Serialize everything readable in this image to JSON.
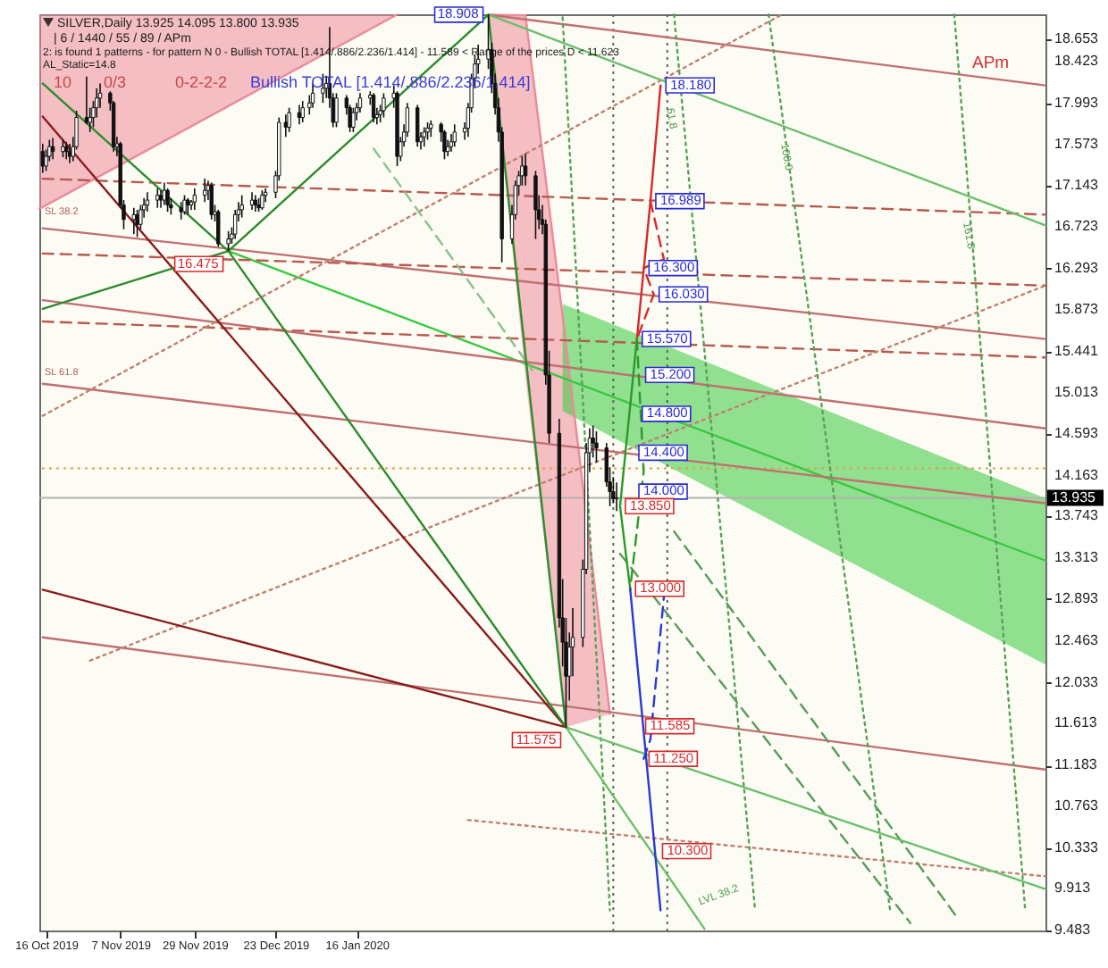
{
  "chart_data": {
    "type": "candlestick",
    "x": [
      "2019-10-15",
      "2019-10-16",
      "2019-10-17",
      "2019-10-18",
      "2019-10-21",
      "2019-10-22",
      "2019-10-23",
      "2019-10-24",
      "2019-10-25",
      "2019-10-28",
      "2019-10-29",
      "2019-10-30",
      "2019-10-31",
      "2019-11-01",
      "2019-11-04",
      "2019-11-05",
      "2019-11-06",
      "2019-11-07",
      "2019-11-08",
      "2019-11-11",
      "2019-11-12",
      "2019-11-13",
      "2019-11-14",
      "2019-11-15",
      "2019-11-18",
      "2019-11-19",
      "2019-11-20",
      "2019-11-21",
      "2019-11-22",
      "2019-11-25",
      "2019-11-26",
      "2019-11-27",
      "2019-11-28",
      "2019-11-29",
      "2019-12-02",
      "2019-12-03",
      "2019-12-04",
      "2019-12-05",
      "2019-12-06",
      "2019-12-09",
      "2019-12-10",
      "2019-12-11",
      "2019-12-12",
      "2019-12-13",
      "2019-12-16",
      "2019-12-17",
      "2019-12-18",
      "2019-12-19",
      "2019-12-20",
      "2019-12-23",
      "2019-12-24",
      "2019-12-26",
      "2019-12-27",
      "2019-12-30",
      "2019-12-31",
      "2020-01-02",
      "2020-01-03",
      "2020-01-06",
      "2020-01-07",
      "2020-01-08",
      "2020-01-09",
      "2020-01-10",
      "2020-01-13",
      "2020-01-14",
      "2020-01-15",
      "2020-01-16",
      "2020-01-17",
      "2020-01-20",
      "2020-01-21",
      "2020-01-22",
      "2020-01-23",
      "2020-01-24",
      "2020-01-27",
      "2020-01-28",
      "2020-01-29",
      "2020-01-30",
      "2020-01-31",
      "2020-02-03",
      "2020-02-04",
      "2020-02-05",
      "2020-02-06",
      "2020-02-07",
      "2020-02-10",
      "2020-02-11",
      "2020-02-12",
      "2020-02-13",
      "2020-02-14",
      "2020-02-17",
      "2020-02-18",
      "2020-02-19",
      "2020-02-20",
      "2020-02-21",
      "2020-02-24",
      "2020-02-25",
      "2020-02-26",
      "2020-02-27",
      "2020-02-28",
      "2020-03-02",
      "2020-03-03",
      "2020-03-04",
      "2020-03-05",
      "2020-03-06",
      "2020-03-09",
      "2020-03-10",
      "2020-03-11",
      "2020-03-12",
      "2020-03-13",
      "2020-03-16",
      "2020-03-17",
      "2020-03-18",
      "2020-03-19",
      "2020-03-20",
      "2020-03-23",
      "2020-03-24",
      "2020-03-25",
      "2020-03-26",
      "2020-03-27",
      "2020-03-30",
      "2020-03-31",
      "2020-04-01",
      "2020-04-02"
    ],
    "ohlc": [
      [
        17.5,
        17.58,
        17.28,
        17.35
      ],
      [
        17.35,
        17.52,
        17.3,
        17.45
      ],
      [
        17.45,
        17.62,
        17.4,
        17.55
      ],
      [
        17.55,
        17.64,
        17.42,
        17.5
      ],
      [
        17.5,
        17.62,
        17.44,
        17.55
      ],
      [
        17.55,
        17.6,
        17.42,
        17.5
      ],
      [
        17.5,
        17.58,
        17.38,
        17.45
      ],
      [
        17.45,
        17.65,
        17.4,
        17.55
      ],
      [
        17.55,
        17.92,
        17.52,
        17.85
      ],
      [
        17.85,
        18.27,
        17.78,
        17.8
      ],
      [
        17.8,
        17.95,
        17.7,
        17.85
      ],
      [
        17.85,
        18.02,
        17.75,
        17.95
      ],
      [
        17.95,
        18.15,
        17.85,
        18.05
      ],
      [
        18.05,
        18.2,
        17.95,
        18.1
      ],
      [
        18.1,
        18.12,
        17.92,
        18.0
      ],
      [
        18.0,
        18.02,
        17.5,
        17.55
      ],
      [
        17.55,
        17.65,
        17.45,
        17.58
      ],
      [
        17.58,
        17.6,
        16.92,
        16.95
      ],
      [
        16.95,
        17.0,
        16.7,
        16.8
      ],
      [
        16.8,
        16.92,
        16.65,
        16.85
      ],
      [
        16.85,
        16.9,
        16.62,
        16.75
      ],
      [
        16.75,
        16.95,
        16.7,
        16.9
      ],
      [
        16.9,
        17.02,
        16.82,
        16.95
      ],
      [
        16.95,
        17.08,
        16.88,
        17.0
      ],
      [
        17.0,
        17.12,
        16.92,
        17.05
      ],
      [
        17.05,
        17.1,
        16.92,
        17.0
      ],
      [
        17.0,
        17.18,
        16.95,
        17.1
      ],
      [
        17.1,
        17.12,
        16.88,
        16.95
      ],
      [
        16.95,
        17.02,
        16.85,
        16.92
      ],
      [
        16.92,
        16.98,
        16.8,
        16.88
      ],
      [
        16.88,
        17.05,
        16.85,
        17.0
      ],
      [
        17.0,
        17.02,
        16.85,
        16.95
      ],
      [
        16.95,
        17.0,
        16.9,
        16.98
      ],
      [
        16.98,
        17.12,
        16.9,
        17.05
      ],
      [
        17.05,
        17.22,
        16.98,
        17.1
      ],
      [
        17.1,
        17.2,
        17.0,
        17.15
      ],
      [
        17.15,
        17.18,
        16.8,
        16.85
      ],
      [
        16.85,
        16.95,
        16.78,
        16.88
      ],
      [
        16.88,
        16.9,
        16.52,
        16.55
      ],
      [
        16.55,
        16.68,
        16.475,
        16.6
      ],
      [
        16.6,
        16.72,
        16.55,
        16.65
      ],
      [
        16.65,
        16.9,
        16.6,
        16.85
      ],
      [
        16.85,
        16.98,
        16.78,
        16.9
      ],
      [
        16.9,
        17.05,
        16.82,
        16.95
      ],
      [
        16.95,
        17.08,
        16.9,
        17.0
      ],
      [
        17.0,
        17.05,
        16.88,
        16.95
      ],
      [
        16.95,
        17.02,
        16.88,
        16.92
      ],
      [
        16.92,
        17.1,
        16.9,
        17.05
      ],
      [
        17.05,
        17.12,
        16.98,
        17.08
      ],
      [
        17.08,
        17.3,
        17.02,
        17.25
      ],
      [
        17.25,
        17.85,
        17.2,
        17.8
      ],
      [
        17.8,
        17.88,
        17.65,
        17.75
      ],
      [
        17.75,
        17.95,
        17.7,
        17.9
      ],
      [
        17.9,
        17.98,
        17.78,
        17.85
      ],
      [
        17.85,
        18.02,
        17.8,
        17.95
      ],
      [
        17.95,
        18.08,
        17.88,
        18.0
      ],
      [
        18.0,
        18.2,
        17.95,
        18.1
      ],
      [
        18.1,
        18.3,
        18.0,
        18.15
      ],
      [
        18.15,
        18.28,
        18.05,
        18.2
      ],
      [
        18.2,
        18.78,
        17.95,
        18.05
      ],
      [
        18.05,
        18.1,
        17.75,
        17.8
      ],
      [
        17.8,
        18.1,
        17.75,
        18.05
      ],
      [
        18.05,
        18.08,
        17.88,
        17.95
      ],
      [
        17.95,
        17.98,
        17.7,
        17.75
      ],
      [
        17.75,
        17.95,
        17.7,
        17.9
      ],
      [
        17.9,
        18.0,
        17.82,
        17.95
      ],
      [
        17.95,
        18.1,
        17.9,
        18.05
      ],
      [
        18.05,
        18.12,
        17.98,
        18.08
      ],
      [
        18.08,
        18.1,
        17.8,
        17.85
      ],
      [
        17.85,
        17.95,
        17.78,
        17.88
      ],
      [
        17.88,
        17.98,
        17.8,
        17.92
      ],
      [
        17.92,
        18.1,
        17.85,
        18.05
      ],
      [
        18.05,
        18.18,
        17.95,
        18.1
      ],
      [
        18.1,
        18.12,
        17.35,
        17.45
      ],
      [
        17.45,
        17.65,
        17.4,
        17.6
      ],
      [
        17.6,
        17.78,
        17.55,
        17.7
      ],
      [
        17.7,
        18.0,
        17.65,
        17.95
      ],
      [
        17.95,
        17.98,
        17.55,
        17.6
      ],
      [
        17.6,
        17.7,
        17.52,
        17.65
      ],
      [
        17.65,
        17.75,
        17.55,
        17.7
      ],
      [
        17.7,
        17.8,
        17.62,
        17.74
      ],
      [
        17.74,
        17.82,
        17.65,
        17.78
      ],
      [
        17.78,
        17.8,
        17.6,
        17.7
      ],
      [
        17.7,
        17.72,
        17.42,
        17.5
      ],
      [
        17.5,
        17.62,
        17.45,
        17.55
      ],
      [
        17.55,
        17.68,
        17.5,
        17.6
      ],
      [
        17.6,
        17.78,
        17.55,
        17.7
      ],
      [
        17.7,
        17.8,
        17.62,
        17.74
      ],
      [
        17.74,
        18.0,
        17.65,
        17.95
      ],
      [
        17.95,
        18.3,
        17.9,
        18.25
      ],
      [
        18.25,
        18.5,
        18.15,
        18.4
      ],
      [
        18.4,
        18.6,
        18.3,
        18.45
      ],
      [
        18.45,
        18.908,
        18.35,
        18.55
      ],
      [
        18.55,
        18.62,
        18.1,
        18.2
      ],
      [
        18.2,
        18.3,
        17.88,
        17.95
      ],
      [
        17.95,
        18.05,
        17.6,
        17.7
      ],
      [
        17.7,
        17.75,
        16.36,
        16.6
      ],
      [
        16.6,
        16.95,
        16.55,
        16.85
      ],
      [
        16.85,
        17.2,
        16.8,
        17.15
      ],
      [
        17.15,
        17.3,
        17.05,
        17.25
      ],
      [
        17.25,
        17.45,
        17.15,
        17.35
      ],
      [
        17.35,
        17.48,
        17.15,
        17.25
      ],
      [
        17.25,
        17.3,
        16.6,
        16.9
      ],
      [
        16.9,
        17.05,
        16.7,
        16.8
      ],
      [
        16.8,
        16.95,
        16.65,
        16.75
      ],
      [
        16.75,
        16.8,
        15.1,
        15.2
      ],
      [
        15.2,
        15.45,
        14.5,
        14.6
      ],
      [
        14.6,
        14.75,
        12.6,
        12.7
      ],
      [
        12.7,
        13.1,
        12.2,
        12.45
      ],
      [
        12.45,
        12.7,
        11.575,
        12.1
      ],
      [
        12.1,
        12.55,
        11.85,
        12.4
      ],
      [
        12.4,
        12.8,
        12.1,
        12.5
      ],
      [
        12.5,
        13.3,
        12.4,
        13.2
      ],
      [
        13.2,
        14.5,
        13.15,
        14.4
      ],
      [
        14.4,
        14.65,
        14.2,
        14.55
      ],
      [
        14.55,
        14.68,
        14.35,
        14.5
      ],
      [
        14.5,
        14.62,
        14.3,
        14.45
      ],
      [
        14.45,
        14.5,
        14.05,
        14.1
      ],
      [
        14.1,
        14.25,
        13.85,
        14.0
      ],
      [
        14.0,
        14.15,
        13.88,
        13.925
      ],
      [
        13.925,
        14.095,
        13.8,
        13.935
      ]
    ],
    "xlim": [
      "2019-10-14",
      "2020-08-07"
    ],
    "xticks": [
      {
        "value": "2019-10-16",
        "label": "16 Oct 2019"
      },
      {
        "value": "2019-11-07",
        "label": "7 Nov 2019"
      },
      {
        "value": "2019-11-29",
        "label": "29 Nov 2019"
      },
      {
        "value": "2019-12-23",
        "label": "23 Dec 2019"
      },
      {
        "value": "2020-01-16",
        "label": "16 Jan 2020"
      }
    ],
    "ylim": [
      9.483,
      18.912
    ],
    "yticks": [
      9.483,
      9.913,
      10.333,
      10.763,
      11.183,
      11.613,
      12.033,
      12.463,
      12.893,
      13.313,
      13.743,
      14.163,
      14.593,
      15.013,
      15.441,
      15.873,
      16.293,
      16.723,
      17.143,
      17.573,
      17.993,
      18.423,
      18.653
    ],
    "series": [
      {
        "type": "line",
        "x": [
          "2019-10-14",
          "2020-01-28"
        ],
        "values": [
          16.91,
          18.91
        ],
        "lower": [
          16.91,
          18.91
        ],
        "upper": [
          18.91,
          18.91
        ],
        "color": "#ec8a9a"
      },
      {
        "type": "line",
        "x": [
          "2020-02-24",
          "2020-03-06",
          "2020-03-18",
          "2020-03-31"
        ],
        "values": [
          18.908,
          18.9,
          15.52,
          11.71
        ],
        "lower": [
          18.908,
          15.17,
          11.575,
          11.71
        ],
        "upper": [
          18.908,
          18.9,
          15.52,
          11.71
        ],
        "color": "#ec8a9a"
      },
      {
        "type": "line",
        "x": [
          "2019-12-09",
          "2020-03-17",
          "2020-08-07"
        ],
        "values": [
          16.475,
          15.17,
          13.29
        ],
        "lower": [
          null,
          14.83,
          12.22
        ],
        "upper": [
          null,
          15.93,
          13.93
        ],
        "color": "#38c93e"
      },
      {
        "type": "line",
        "x": [
          "2019-10-15",
          "2020-08-07"
        ],
        "values": [
          16.71,
          15.57
        ],
        "color": "#c07070"
      },
      {
        "type": "line",
        "x": [
          "2019-10-15",
          "2020-08-07"
        ],
        "values": [
          15.97,
          14.65
        ],
        "color": "#c07070"
      },
      {
        "type": "line",
        "x": [
          "2019-10-15",
          "2020-08-07"
        ],
        "values": [
          15.11,
          13.88
        ],
        "color": "#c07070"
      },
      {
        "type": "line",
        "x": [
          "2019-10-15",
          "2020-08-07"
        ],
        "values": [
          12.5,
          11.14
        ],
        "color": "#c07070"
      },
      {
        "type": "line",
        "x": [
          "2020-02-24",
          "2020-08-07"
        ],
        "values": [
          18.908,
          18.18
        ],
        "color": "#c07070"
      },
      {
        "type": "line",
        "x": [
          "2019-10-15",
          "2020-08-07"
        ],
        "values": [
          17.22,
          16.85
        ],
        "color": "#b85a50",
        "line_style": "dashed"
      },
      {
        "type": "line",
        "x": [
          "2019-10-15",
          "2020-08-07"
        ],
        "values": [
          16.45,
          16.12
        ],
        "color": "#b85a50",
        "line_style": "dashed"
      },
      {
        "type": "line",
        "x": [
          "2019-10-15",
          "2020-08-07"
        ],
        "values": [
          15.75,
          15.38
        ],
        "color": "#b85a50",
        "line_style": "dashed"
      },
      {
        "type": "line",
        "x": [
          "2019-10-15",
          "2020-05-21"
        ],
        "values": [
          14.78,
          18.91
        ],
        "color": "#c08070",
        "line_style": "dotted"
      },
      {
        "type": "line",
        "x": [
          "2019-10-29",
          "2020-08-07"
        ],
        "values": [
          12.26,
          16.12
        ],
        "color": "#c08070",
        "line_style": "dotted"
      },
      {
        "type": "line",
        "x": [
          "2020-02-18",
          "2020-08-07"
        ],
        "values": [
          10.62,
          10.04
        ],
        "color": "#c08070",
        "line_style": "dotted"
      },
      {
        "type": "line",
        "x": [
          "2020-01-21",
          "2020-03-08"
        ],
        "values": [
          17.53,
          15.25
        ],
        "color": "#8cc08c",
        "line_style": "dashed"
      },
      {
        "type": "line",
        "x": [
          "2020-04-03",
          "2020-06-28"
        ],
        "values": [
          13.36,
          9.56
        ],
        "color": "#5a9a5a",
        "line_style": "dashed"
      },
      {
        "type": "line",
        "x": [
          "2020-04-19",
          "2020-07-12"
        ],
        "values": [
          13.59,
          9.61
        ],
        "color": "#5a9a5a",
        "line_style": "dashed"
      },
      {
        "type": "line",
        "x": [
          "2020-03-17",
          "2020-03-31"
        ],
        "values": [
          18.88,
          9.69
        ],
        "color": "#5aa05a",
        "line_style": "dotted"
      },
      {
        "type": "line",
        "x": [
          "2020-04-19",
          "2020-05-13"
        ],
        "values": [
          18.91,
          9.69
        ],
        "color": "#5aa05a",
        "line_style": "dotted"
      },
      {
        "type": "line",
        "x": [
          "2020-05-17",
          "2020-06-22"
        ],
        "values": [
          18.91,
          9.69
        ],
        "color": "#5aa05a",
        "line_style": "dotted"
      },
      {
        "type": "line",
        "x": [
          "2020-07-11",
          "2020-08-01"
        ],
        "values": [
          18.91,
          9.69
        ],
        "color": "#5aa05a",
        "line_style": "dotted"
      },
      {
        "type": "line",
        "x": [
          "2020-02-24",
          "2020-08-07"
        ],
        "values": [
          18.908,
          16.74
        ],
        "color": "#6cbf6c"
      },
      {
        "type": "line",
        "x": [
          "2020-04-28",
          "2020-03-18",
          "2020-08-07"
        ],
        "values": [
          9.5,
          11.575,
          9.91
        ],
        "color": "#6cbf6c"
      },
      {
        "type": "line",
        "x": [
          "2019-10-15",
          "2020-03-18",
          "2019-10-15"
        ],
        "values": [
          17.86,
          11.575,
          12.99
        ],
        "color": "#8b1c1c"
      },
      {
        "type": "line",
        "x": [
          "2019-10-15",
          "2019-12-09",
          "2020-02-24",
          "2020-03-18",
          "2019-12-09",
          "2019-10-15"
        ],
        "values": [
          18.2,
          16.475,
          18.908,
          11.575,
          16.475,
          15.88
        ],
        "color": "#2e8b2e"
      },
      {
        "type": "line",
        "x": [
          "2020-04-08",
          "2020-04-12",
          "2020-04-15"
        ],
        "values": [
          15.57,
          16.989,
          18.18
        ],
        "color": "#d42a2a"
      },
      {
        "type": "line",
        "x": [
          "2020-04-12",
          "2020-04-16",
          "2020-04-10",
          "2020-04-13",
          "2020-04-08"
        ],
        "values": [
          16.989,
          16.39,
          16.3,
          16.03,
          15.57
        ],
        "color": "#d42a2a",
        "line_style": "dashed"
      },
      {
        "type": "line",
        "x": [
          "2020-04-06",
          "2020-04-03",
          "2020-04-08"
        ],
        "values": [
          13.0,
          13.85,
          15.57
        ],
        "color": "#2a9a2a"
      },
      {
        "type": "line",
        "x": [
          "2020-04-08",
          "2020-04-10",
          "2020-04-06"
        ],
        "values": [
          15.57,
          14.2,
          13.0
        ],
        "color": "#2a9a2a",
        "line_style": "dashed"
      },
      {
        "type": "line",
        "x": [
          "2020-04-06",
          "2020-04-15"
        ],
        "values": [
          13.0,
          9.69
        ],
        "color": "#2a3ad0"
      },
      {
        "type": "line",
        "x": [
          "2020-04-10",
          "2020-04-12",
          "2020-04-16"
        ],
        "values": [
          11.25,
          11.45,
          12.92
        ],
        "color": "#2a3ad0",
        "line_style": "dashed"
      }
    ],
    "ref_lines": [
      {
        "axis": "y",
        "value": 13.935,
        "label": "13.935",
        "color": "#b4b4b4"
      },
      {
        "axis": "y",
        "value": 14.24,
        "color": "#e0a040",
        "line_style": "dotted"
      },
      {
        "axis": "x",
        "value": "2020-04-01",
        "color": "#606060",
        "line_style": "dotted"
      },
      {
        "axis": "x",
        "value": "2020-04-17",
        "color": "#606060",
        "line_style": "dotted"
      }
    ],
    "annotations": [
      "SILVER,Daily  13.925 14.095 13.800 13.935",
      "| 6 / 1440 / 55 / 89 / APm",
      "2: is found 1 patterns  -  for pattern N 0 - Bullish TOTAL [1.414/.886/2.236/1.414] - 11.589 < Range of the prices D < 11.623",
      "AL_Static=14.8",
      "10",
      "0/3",
      "0-2-2-2",
      "Bullish TOTAL [1.414/.886/2.236/1.414]",
      "APm",
      "SL 38.2",
      "SL 61.8",
      "61.8",
      "100.0",
      "161.8",
      "LVL 38.2",
      {
        "text": "18.908",
        "x": "2020-02-24",
        "y": 18.908
      },
      {
        "text": "16.475",
        "x": "2019-12-09",
        "y": 16.475
      },
      {
        "text": "11.575",
        "x": "2020-03-18",
        "y": 11.575
      },
      {
        "text": "18.180",
        "x": "2020-04-15",
        "y": 18.18
      },
      {
        "text": "16.989",
        "x": "2020-04-12",
        "y": 16.989
      },
      {
        "text": "16.300",
        "x": "2020-04-10",
        "y": 16.3
      },
      {
        "text": "16.030",
        "x": "2020-04-13",
        "y": 16.03
      },
      {
        "text": "15.570",
        "x": "2020-04-08",
        "y": 15.57
      },
      {
        "text": "15.200",
        "x": "2020-04-09",
        "y": 15.2
      },
      {
        "text": "14.800",
        "x": "2020-04-08",
        "y": 14.8
      },
      {
        "text": "14.400",
        "x": "2020-04-07",
        "y": 14.4
      },
      {
        "text": "14.000",
        "x": "2020-04-07",
        "y": 14.0
      },
      {
        "text": "13.850",
        "x": "2020-04-03",
        "y": 13.85
      },
      {
        "text": "13.000",
        "x": "2020-04-06",
        "y": 13.0
      },
      {
        "text": "11.585",
        "x": "2020-04-09",
        "y": 11.585
      },
      {
        "text": "11.250",
        "x": "2020-04-10",
        "y": 11.25
      },
      {
        "text": "10.300",
        "x": "2020-04-14",
        "y": 10.3
      }
    ]
  }
}
